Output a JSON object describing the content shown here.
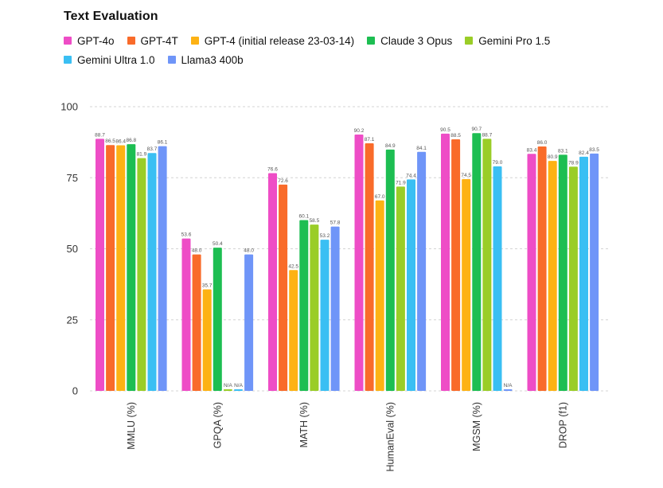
{
  "chart_data": {
    "type": "bar",
    "title": "Text Evaluation",
    "xlabel": "",
    "ylabel": "",
    "ylim": [
      0,
      100
    ],
    "yticks": [
      0,
      25,
      50,
      75,
      100
    ],
    "grid": true,
    "legend_position": "top",
    "categories": [
      "MMLU (%)",
      "GPQA (%)",
      "MATH (%)",
      "HumanEval (%)",
      "MGSM (%)",
      "DROP (f1)"
    ],
    "series": [
      {
        "name": "GPT-4o",
        "color": "#EE4DC6",
        "values": [
          88.7,
          53.6,
          76.6,
          90.2,
          90.5,
          83.4
        ],
        "labels": [
          "88.7",
          "53.6",
          "76.6",
          "90.2",
          "90.5",
          "83.4"
        ]
      },
      {
        "name": "GPT-4T",
        "color": "#F96B2A",
        "values": [
          86.5,
          48.0,
          72.6,
          87.1,
          88.5,
          86.0
        ],
        "labels": [
          "86.5",
          "48.0",
          "72.6",
          "87.1",
          "88.5",
          "86.0"
        ]
      },
      {
        "name": "GPT-4 (initial release 23-03-14)",
        "color": "#FDB214",
        "values": [
          86.4,
          35.7,
          42.5,
          67.0,
          74.5,
          80.9
        ],
        "labels": [
          "86.4",
          "35.7",
          "42.5",
          "67.0",
          "74.5",
          "80.9"
        ]
      },
      {
        "name": "Claude 3 Opus",
        "color": "#1DBE52",
        "values": [
          86.8,
          50.4,
          60.1,
          84.9,
          90.7,
          83.1
        ],
        "labels": [
          "86.8",
          "50.4",
          "60.1",
          "84.9",
          "90.7",
          "83.1"
        ]
      },
      {
        "name": "Gemini Pro 1.5",
        "color": "#9ACD27",
        "values": [
          81.9,
          null,
          58.5,
          71.9,
          88.7,
          78.9
        ],
        "labels": [
          "81.9",
          "N/A",
          "58.5",
          "71.9",
          "88.7",
          "78.9"
        ]
      },
      {
        "name": "Gemini Ultra 1.0",
        "color": "#3ABFF3",
        "values": [
          83.7,
          null,
          53.2,
          74.4,
          79.0,
          82.4
        ],
        "labels": [
          "83.7",
          "N/A",
          "53.2",
          "74.4",
          "79.0",
          "82.4"
        ]
      },
      {
        "name": "Llama3 400b",
        "color": "#6F95F8",
        "values": [
          86.1,
          48.0,
          57.8,
          84.1,
          null,
          83.5
        ],
        "labels": [
          "86.1",
          "48.0",
          "57.8",
          "84.1",
          "N/A",
          "83.5"
        ]
      }
    ]
  }
}
